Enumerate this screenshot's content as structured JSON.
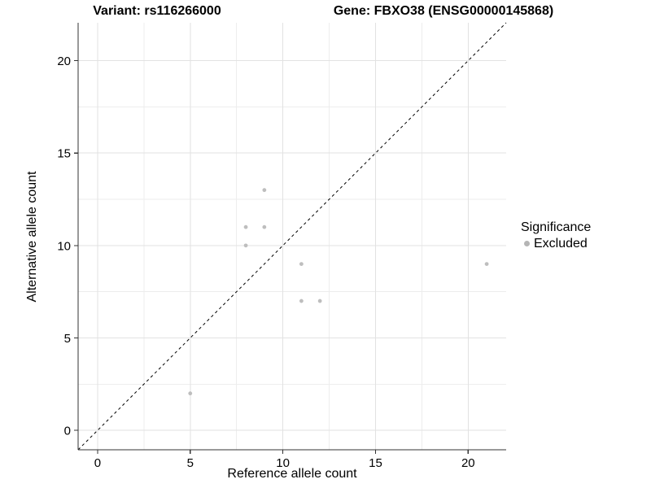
{
  "chart_data": {
    "type": "scatter",
    "title_left": "Variant: rs116266000",
    "title_right": "Gene: FBXO38 (ENSG00000145868)",
    "xlabel": "Reference allele count",
    "ylabel": "Alternative allele count",
    "xlim": [
      -1.05,
      22.05
    ],
    "ylim": [
      -1.05,
      22.05
    ],
    "x_ticks": [
      0,
      5,
      10,
      15,
      20
    ],
    "y_ticks": [
      0,
      5,
      10,
      15,
      20
    ],
    "x_minor_ticks": [
      2.5,
      7.5,
      12.5,
      17.5
    ],
    "y_minor_ticks": [
      2.5,
      7.5,
      12.5,
      17.5
    ],
    "grid": true,
    "series": [
      {
        "name": "Excluded",
        "color": "#bebebe",
        "point_radius": 2.4,
        "points": [
          [
            5,
            2
          ],
          [
            8,
            10
          ],
          [
            8,
            11
          ],
          [
            9,
            11
          ],
          [
            9,
            13
          ],
          [
            11,
            7
          ],
          [
            11,
            9
          ],
          [
            12,
            7
          ],
          [
            21,
            9
          ]
        ]
      }
    ],
    "reference_line": {
      "type": "identity",
      "style": "dashed",
      "color": "#000000"
    },
    "legend": {
      "title": "Significance",
      "position": "right",
      "entries": [
        {
          "label": "Excluded",
          "color": "#b5b5b5"
        }
      ]
    },
    "colors": {
      "background": "#ffffff",
      "grid_major": "#e2e2e2",
      "grid_minor": "#ededed",
      "axis_line": "#333333",
      "tick_label": "#000000"
    }
  }
}
